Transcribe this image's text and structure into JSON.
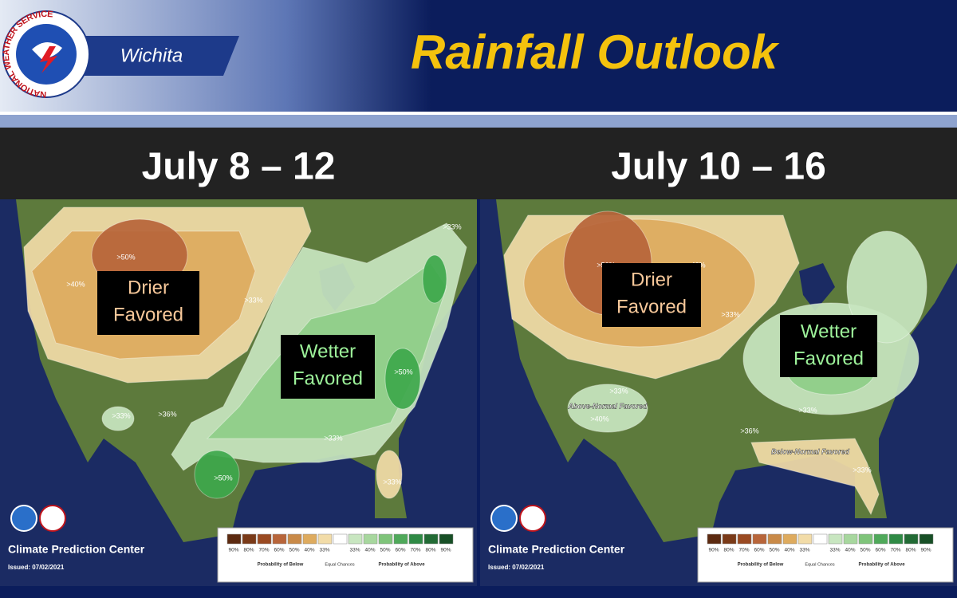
{
  "header": {
    "logo_text": "NATIONAL WEATHER SERVICE",
    "office": "Wichita",
    "title": "Rainfall Outlook"
  },
  "panels": [
    {
      "heading": "July 8 – 12",
      "labels": [
        ">50%",
        ">40%",
        ">33%",
        ">33%",
        ">50%",
        ">33%",
        ">36%",
        ">33%",
        ">50%",
        ">33%"
      ],
      "callouts": [
        {
          "lines": [
            "Drier",
            "Favored"
          ]
        },
        {
          "lines": [
            "Wetter",
            "Favored"
          ]
        }
      ],
      "credit": "Climate Prediction Center",
      "issued": "Issued: 07/02/2021",
      "legend": {
        "below": [
          "90%",
          "80%",
          "70%",
          "60%",
          "50%",
          "40%",
          "33%"
        ],
        "above": [
          "33%",
          "40%",
          "50%",
          "60%",
          "70%",
          "80%",
          "90%"
        ],
        "equal": "Equal Chances",
        "below_caption": "Probability of Below",
        "above_caption": "Probability of Above"
      }
    },
    {
      "heading": "July 10 – 16",
      "labels": [
        ">50%",
        ">40%",
        ">33%",
        ">33%",
        "Above-Normal Favored",
        ">40%",
        ">33%",
        ">36%",
        "Below-Normal Favored",
        ">33%"
      ],
      "callouts": [
        {
          "lines": [
            "Drier",
            "Favored"
          ]
        },
        {
          "lines": [
            "Wetter",
            "Favored"
          ]
        }
      ],
      "credit": "Climate Prediction Center",
      "issued": "Issued: 07/02/2021",
      "legend": {
        "below": [
          "90%",
          "80%",
          "70%",
          "60%",
          "50%",
          "40%",
          "33%"
        ],
        "above": [
          "33%",
          "40%",
          "50%",
          "60%",
          "70%",
          "80%",
          "90%"
        ],
        "equal": "Equal Chances",
        "below_caption": "Probability of Below",
        "above_caption": "Probability of Above"
      }
    }
  ]
}
